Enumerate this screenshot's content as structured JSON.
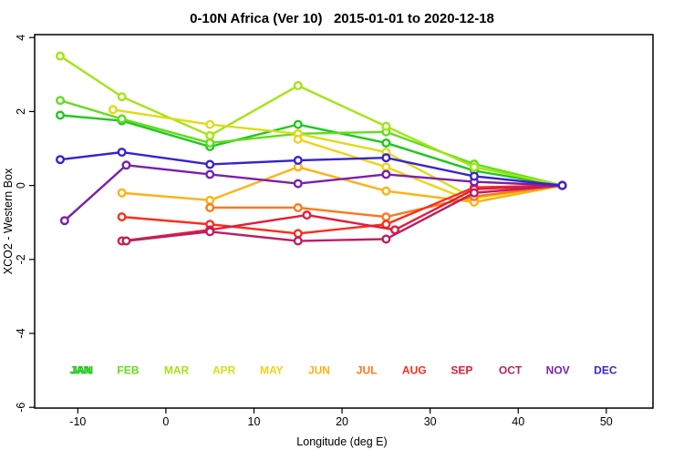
{
  "chart_data": {
    "type": "line",
    "title": "0-10N Africa (Ver 10)   2015-01-01 to 2020-12-18",
    "xlabel": "Longitude (deg E)",
    "ylabel": "XCO2 - Western Box",
    "xlim": [
      -14.9,
      55.3
    ],
    "ylim": [
      -6.02,
      4.08
    ],
    "xticks": [
      -10,
      0,
      10,
      20,
      30,
      40,
      50
    ],
    "yticks": [
      -6,
      -4,
      -2,
      0,
      2,
      4
    ],
    "grid": false,
    "legend_position": "inside-bottom-row",
    "legend_y": -5.0,
    "layout": {
      "margins": {
        "l": 38,
        "t": 38,
        "r": 34,
        "b": 52
      }
    },
    "series": [
      {
        "name": "JAN",
        "color": "#1fc81f",
        "label_x": -9.7,
        "label_double": true,
        "points": [
          [
            -12,
            1.9
          ],
          [
            -5,
            1.75
          ],
          [
            5,
            1.05
          ],
          [
            15,
            1.65
          ],
          [
            25,
            1.15
          ],
          [
            35,
            0.4
          ],
          [
            45,
            0
          ]
        ]
      },
      {
        "name": "FEB",
        "color": "#62dd1b",
        "label_x": -4.3,
        "points": [
          [
            -12,
            2.3
          ],
          [
            -5,
            1.8
          ],
          [
            5,
            1.15
          ],
          [
            15,
            1.4
          ],
          [
            25,
            1.45
          ],
          [
            35,
            0.58
          ],
          [
            45,
            0
          ]
        ]
      },
      {
        "name": "MAR",
        "color": "#a5e414",
        "label_x": 1.2,
        "points": [
          [
            -12,
            3.5
          ],
          [
            -5,
            2.4
          ],
          [
            5,
            1.35
          ],
          [
            15,
            2.7
          ],
          [
            25,
            1.6
          ],
          [
            35,
            0.5
          ],
          [
            45,
            0
          ]
        ]
      },
      {
        "name": "APR",
        "color": "#dcdc1a",
        "label_x": 6.6,
        "points": [
          [
            -6,
            2.05
          ],
          [
            5,
            1.65
          ],
          [
            15,
            1.4
          ],
          [
            25,
            0.9
          ],
          [
            35,
            -0.35
          ],
          [
            45,
            0
          ]
        ]
      },
      {
        "name": "MAY",
        "color": "#f0d313",
        "label_x": 12.0,
        "points": [
          [
            15,
            1.25
          ],
          [
            25,
            0.5
          ],
          [
            35,
            -0.45
          ],
          [
            45,
            0
          ]
        ]
      },
      {
        "name": "JUN",
        "color": "#ffb114",
        "label_x": 17.4,
        "points": [
          [
            -5,
            -0.2
          ],
          [
            5,
            -0.4
          ],
          [
            15,
            0.5
          ],
          [
            25,
            -0.15
          ],
          [
            35,
            -0.45
          ],
          [
            45,
            0
          ]
        ]
      },
      {
        "name": "JUL",
        "color": "#ff7716",
        "label_x": 22.8,
        "points": [
          [
            5,
            -0.6
          ],
          [
            15,
            -0.6
          ],
          [
            25,
            -0.85
          ],
          [
            35,
            -0.3
          ],
          [
            45,
            0
          ]
        ]
      },
      {
        "name": "AUG",
        "color": "#fb2e1a",
        "label_x": 28.2,
        "points": [
          [
            -5,
            -0.85
          ],
          [
            5,
            -1.05
          ],
          [
            15,
            -1.3
          ],
          [
            25,
            -1.05
          ],
          [
            35,
            -0.05
          ],
          [
            45,
            0
          ]
        ]
      },
      {
        "name": "SEP",
        "color": "#e51a3c",
        "label_x": 33.6,
        "points": [
          [
            -5,
            -1.5
          ],
          [
            5,
            -1.2
          ],
          [
            16,
            -0.8
          ],
          [
            26,
            -1.2
          ],
          [
            35,
            -0.1
          ],
          [
            45,
            0
          ]
        ]
      },
      {
        "name": "OCT",
        "color": "#bc1f62",
        "label_x": 39.1,
        "points": [
          [
            -4.5,
            -1.5
          ],
          [
            5,
            -1.25
          ],
          [
            15,
            -1.5
          ],
          [
            25,
            -1.45
          ],
          [
            35,
            -0.2
          ],
          [
            45,
            0
          ]
        ]
      },
      {
        "name": "NOV",
        "color": "#7a1fae",
        "label_x": 44.5,
        "points": [
          [
            -11.5,
            -0.95
          ],
          [
            -4.5,
            0.55
          ],
          [
            5,
            0.3
          ],
          [
            15,
            0.05
          ],
          [
            25,
            0.3
          ],
          [
            35,
            0.1
          ],
          [
            45,
            0
          ]
        ]
      },
      {
        "name": "DEC",
        "color": "#3823cf",
        "label_x": 49.9,
        "points": [
          [
            -12,
            0.7
          ],
          [
            -5,
            0.9
          ],
          [
            5,
            0.57
          ],
          [
            15,
            0.68
          ],
          [
            25,
            0.75
          ],
          [
            35,
            0.25
          ],
          [
            45,
            0
          ]
        ]
      }
    ],
    "style": {
      "line_width": 2.4,
      "marker_radius": 3.8,
      "marker_stroke": 2.4,
      "marker_fill": "#ffffff",
      "axis_color": "#000000"
    }
  }
}
